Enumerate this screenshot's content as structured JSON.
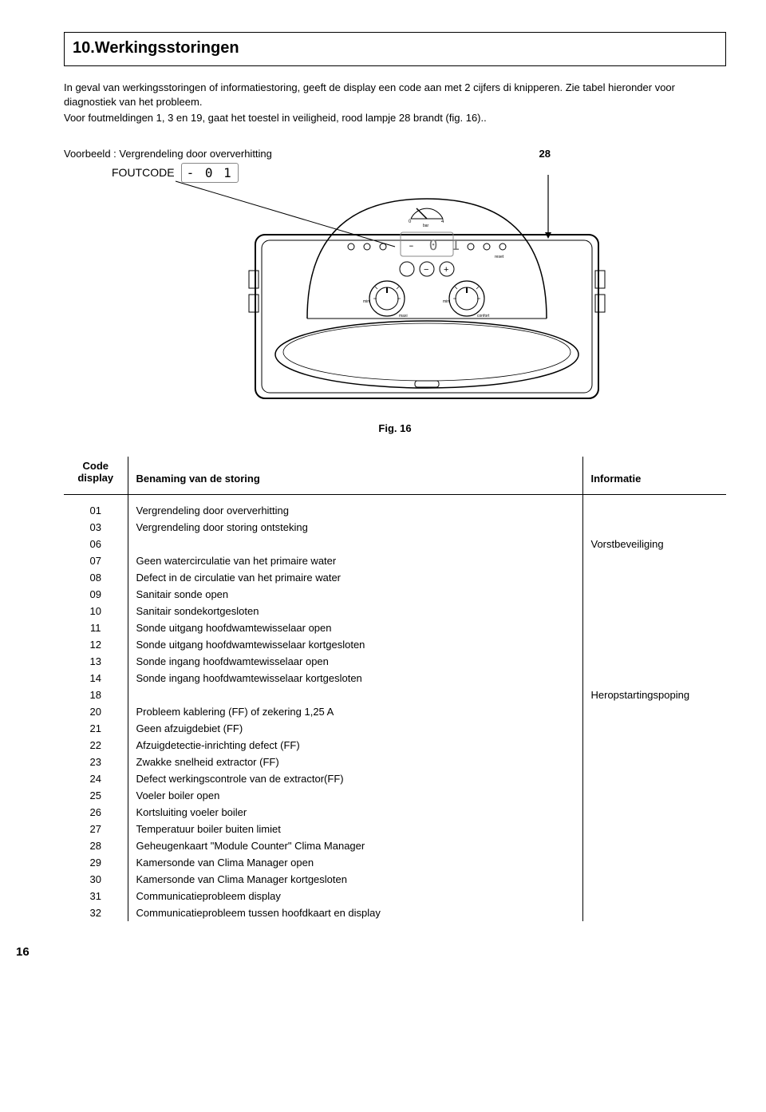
{
  "section_title": "10.Werkingsstoringen",
  "intro": {
    "line1": "In geval van werkingsstoringen of informatiestoring, geeft de display een code aan met 2 cijfers di knipperen. Zie tabel hieronder voor diagnostiek van het probleem.",
    "line2_a": "Voor foutmeldingen 1, 3 en 19, gaat het toestel in veiligheid, rood lampje ",
    "line2_b": "28",
    "line2_c": " brandt (fig. 16)..",
    "full_line2": "Voor foutmeldingen 1, 3 en 19, gaat het toestel in veiligheid, rood lampje 28 brandt (fig. 16).."
  },
  "example": {
    "label": "Voorbeeld : Vergrendeling door  oververhitting",
    "ref_num": "28",
    "foutcode_label": "FOUTCODE",
    "foutcode_value": "- 0 1"
  },
  "diagram": {
    "stroke": "#000000",
    "stroke_width": 1.2,
    "display_value": "- 0 1",
    "gauge_min": "0",
    "gauge_max": "4",
    "gauge_label": "bar",
    "led_labels": [
      "⏻",
      "!",
      "🌡",
      "⚡",
      "✕",
      "reset"
    ],
    "dial_left_label": "maxi",
    "dial_right_label": "confort",
    "dial_mini": "mini"
  },
  "fig_caption": "Fig. 16",
  "table": {
    "header_code_line1": "Code",
    "header_code_line2": "display",
    "header_desc": "Benaming van de storing",
    "header_info": "Informatie",
    "rows": [
      {
        "code": "01",
        "desc": "Vergrendeling door oververhitting",
        "info": ""
      },
      {
        "code": "03",
        "desc": "Vergrendeling door storing ontsteking",
        "info": ""
      },
      {
        "code": "06",
        "desc": "",
        "info": "Vorstbeveiliging"
      },
      {
        "code": "07",
        "desc": "Geen watercirculatie van het primaire water",
        "info": ""
      },
      {
        "code": "08",
        "desc": "Defect in de circulatie van het primaire water",
        "info": ""
      },
      {
        "code": "09",
        "desc": "Sanitair sonde open",
        "info": ""
      },
      {
        "code": "10",
        "desc": "Sanitair sondekortgesloten",
        "info": ""
      },
      {
        "code": "11",
        "desc": "Sonde uitgang hoofdwamtewisselaar open",
        "info": ""
      },
      {
        "code": "12",
        "desc": "Sonde uitgang hoofdwamtewisselaar kortgesloten",
        "info": ""
      },
      {
        "code": "13",
        "desc": "Sonde ingang hoofdwamtewisselaar open",
        "info": ""
      },
      {
        "code": "14",
        "desc": "Sonde ingang hoofdwamtewisselaar kortgesloten",
        "info": ""
      },
      {
        "code": "18",
        "desc": "",
        "info": "Heropstartingspoping"
      },
      {
        "code": "20",
        "desc": "Probleem kablering (FF) of zekering 1,25 A",
        "info": ""
      },
      {
        "code": "21",
        "desc": "Geen afzuigdebiet (FF)",
        "info": ""
      },
      {
        "code": "22",
        "desc": "Afzuigdetectie-inrichting defect (FF)",
        "info": ""
      },
      {
        "code": "23",
        "desc": "Zwakke snelheid extractor (FF)",
        "info": ""
      },
      {
        "code": "24",
        "desc": "Defect werkingscontrole van de extractor(FF)",
        "info": ""
      },
      {
        "code": "25",
        "desc": "Voeler boiler open",
        "info": ""
      },
      {
        "code": "26",
        "desc": "Kortsluiting voeler boiler",
        "info": ""
      },
      {
        "code": "27",
        "desc": "Temperatuur boiler buiten limiet",
        "info": ""
      },
      {
        "code": "28",
        "desc": "Geheugenkaart \"Module Counter\" Clima Manager",
        "info": ""
      },
      {
        "code": "29",
        "desc": "Kamersonde van Clima Manager open",
        "info": ""
      },
      {
        "code": "30",
        "desc": "Kamersonde van Clima Manager kortgesloten",
        "info": ""
      },
      {
        "code": "31",
        "desc": "Communicatieprobleem display",
        "info": ""
      },
      {
        "code": "32",
        "desc": "Communicatieprobleem tussen hoofdkaart en display",
        "info": ""
      }
    ]
  },
  "page_number": "16"
}
